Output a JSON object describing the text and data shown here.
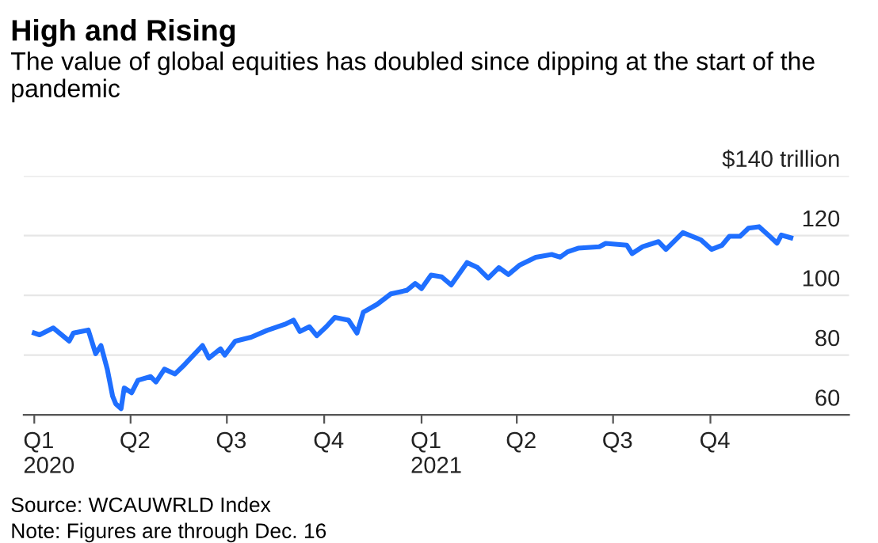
{
  "chart_data": {
    "type": "line",
    "title": "High and Rising",
    "subtitle": "The value of global equities has doubled since dipping at the start of the pandemic",
    "annotations": [
      "Source: WCAUWRLD Index",
      "Note: Figures are through Dec. 16"
    ],
    "series": [
      {
        "color": "#1f6fff",
        "x": [
          "2020-01-01",
          "2020-01-06",
          "2020-01-19",
          "2020-02-03",
          "2020-02-07",
          "2020-02-21",
          "2020-02-28",
          "2020-03-04",
          "2020-03-10",
          "2020-03-15",
          "2020-03-18",
          "2020-03-23",
          "2020-03-26",
          "2020-04-02",
          "2020-04-08",
          "2020-04-20",
          "2020-04-25",
          "2020-05-03",
          "2020-05-13",
          "2020-05-22",
          "2020-06-08",
          "2020-06-14",
          "2020-06-25",
          "2020-06-29",
          "2020-07-09",
          "2020-07-24",
          "2020-08-08",
          "2020-08-26",
          "2020-09-02",
          "2020-09-08",
          "2020-09-17",
          "2020-09-24",
          "2020-10-03",
          "2020-10-11",
          "2020-10-24",
          "2020-11-01",
          "2020-11-07",
          "2020-11-20",
          "2020-12-03",
          "2020-12-18",
          "2020-12-26",
          "2021-01-01",
          "2021-01-10",
          "2021-01-20",
          "2021-01-29",
          "2021-02-13",
          "2021-02-23",
          "2021-03-05",
          "2021-03-15",
          "2021-03-24",
          "2021-04-04",
          "2021-04-19",
          "2021-05-04",
          "2021-05-12",
          "2021-05-19",
          "2021-05-29",
          "2021-06-18",
          "2021-06-24",
          "2021-07-14",
          "2021-07-19",
          "2021-07-29",
          "2021-08-13",
          "2021-08-20",
          "2021-09-05",
          "2021-09-22",
          "2021-10-02",
          "2021-10-12",
          "2021-10-19",
          "2021-10-29",
          "2021-11-06",
          "2021-11-16",
          "2021-11-26",
          "2021-12-03",
          "2021-12-07",
          "2021-12-16"
        ],
        "values": [
          87.4,
          86.8,
          89.1,
          84.7,
          87.4,
          88.4,
          80.5,
          83.2,
          75.3,
          66.3,
          63.7,
          62.1,
          69,
          67.4,
          71.6,
          72.8,
          71,
          75.3,
          73.7,
          76.8,
          83.2,
          79,
          82.1,
          80,
          84.7,
          86,
          88.3,
          90.5,
          91.7,
          87.9,
          89.5,
          86.5,
          89.5,
          92.6,
          91.7,
          87.4,
          94.4,
          97,
          100.5,
          101.7,
          104,
          102.3,
          106.8,
          106.2,
          103.5,
          111,
          109.3,
          105.8,
          109.3,
          107,
          110.2,
          112.8,
          113.7,
          112.8,
          114.6,
          115.8,
          116.3,
          117.4,
          116.8,
          114,
          116.3,
          118,
          115.4,
          121,
          118.6,
          115.4,
          116.8,
          119.8,
          119.8,
          122.5,
          123,
          119.8,
          117.5,
          120.2,
          119.3
        ]
      }
    ],
    "xlim": [
      "2019-12-22",
      "2022-02-09"
    ],
    "xticks": [
      {
        "value": "2020-01-01",
        "label": "Q1\n2020"
      },
      {
        "value": "2020-04-01",
        "label": "Q2"
      },
      {
        "value": "2020-07-01",
        "label": "Q3"
      },
      {
        "value": "2020-10-01",
        "label": "Q4"
      },
      {
        "value": "2021-01-01",
        "label": "Q1\n2021"
      },
      {
        "value": "2021-04-01",
        "label": "Q2"
      },
      {
        "value": "2021-07-01",
        "label": "Q3"
      },
      {
        "value": "2021-10-01",
        "label": "Q4"
      }
    ],
    "ylim": [
      60,
      140
    ],
    "yticks": [
      60,
      80,
      100,
      120,
      {
        "value": 140,
        "label": "$140 trillion"
      }
    ],
    "grid": "y",
    "line_style": "solid"
  }
}
